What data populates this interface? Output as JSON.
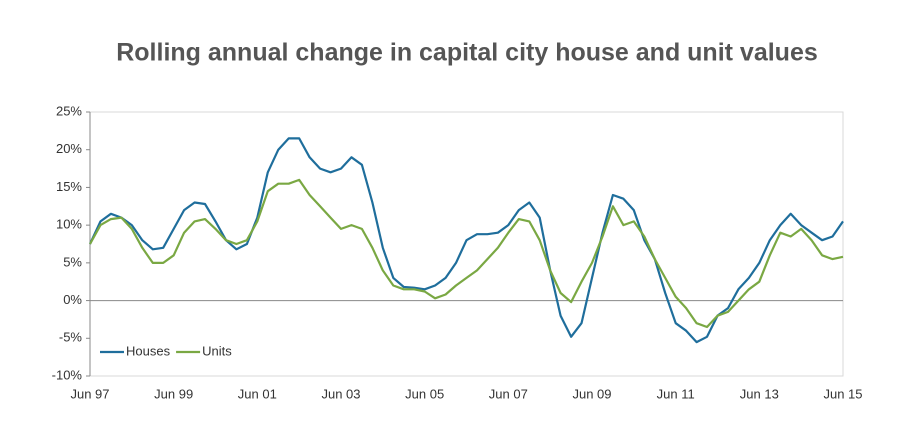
{
  "chart_data": {
    "type": "line",
    "title": "Rolling annual change in capital city house and unit values",
    "categories": [
      "Jun 97",
      null,
      null,
      null,
      null,
      null,
      null,
      null,
      "Jun 99",
      null,
      null,
      null,
      null,
      null,
      null,
      null,
      "Jun 01",
      null,
      null,
      null,
      null,
      null,
      null,
      null,
      "Jun 03",
      null,
      null,
      null,
      null,
      null,
      null,
      null,
      "Jun 05",
      null,
      null,
      null,
      null,
      null,
      null,
      null,
      "Jun 07",
      null,
      null,
      null,
      null,
      null,
      null,
      null,
      "Jun 09",
      null,
      null,
      null,
      null,
      null,
      null,
      null,
      "Jun 11",
      null,
      null,
      null,
      null,
      null,
      null,
      null,
      "Jun 13",
      null,
      null,
      null,
      null,
      null,
      null,
      null,
      "Jun 15"
    ],
    "series": [
      {
        "name": "Houses",
        "color": "#1f6e9c",
        "values": [
          7.5,
          10.5,
          11.5,
          11,
          10,
          8,
          6.8,
          7,
          9.5,
          12,
          13,
          12.8,
          10.5,
          8,
          6.8,
          7.5,
          11,
          17,
          20,
          21.5,
          21.5,
          19,
          17.5,
          17,
          17.5,
          19,
          18,
          13,
          7,
          3,
          1.8,
          1.7,
          1.5,
          2,
          3,
          5,
          8,
          8.8,
          8.8,
          9,
          10,
          12,
          13,
          11,
          4,
          -2,
          -4.8,
          -3,
          3,
          9,
          14,
          13.5,
          12,
          8,
          5.5,
          1,
          -3,
          -4,
          -5.5,
          -4.8,
          -2,
          -1,
          1.5,
          3,
          5,
          8,
          10,
          11.5,
          10,
          9,
          8,
          8.5,
          10.5
        ]
      },
      {
        "name": "Units",
        "color": "#7aa843",
        "values": [
          7.5,
          10,
          10.8,
          11,
          9.5,
          7,
          5,
          5,
          6,
          9,
          10.5,
          10.8,
          9.5,
          8,
          7.5,
          8,
          10.5,
          14.5,
          15.5,
          15.5,
          16,
          14,
          12.5,
          11,
          9.5,
          10,
          9.5,
          7,
          4,
          2,
          1.5,
          1.5,
          1.2,
          0.3,
          0.8,
          2,
          3,
          4,
          5.5,
          7,
          9,
          10.8,
          10.5,
          8,
          4,
          1,
          -0.2,
          2.5,
          5,
          8.5,
          12.5,
          10,
          10.5,
          8.5,
          5.5,
          3,
          0.5,
          -1,
          -3,
          -3.5,
          -2,
          -1.5,
          0,
          1.5,
          2.5,
          6,
          9,
          8.5,
          9.5,
          8,
          6,
          5.5,
          5.8
        ]
      }
    ],
    "ylim": [
      -10,
      25
    ],
    "yticks": [
      {
        "value": -10,
        "label": "-10%"
      },
      {
        "value": -5,
        "label": "-5%"
      },
      {
        "value": 0,
        "label": "0%"
      },
      {
        "value": 5,
        "label": "5%"
      },
      {
        "value": 10,
        "label": "10%"
      },
      {
        "value": 15,
        "label": "15%"
      },
      {
        "value": 20,
        "label": "20%"
      },
      {
        "value": 25,
        "label": "25%"
      }
    ],
    "grid": false,
    "legend": "lower left"
  }
}
